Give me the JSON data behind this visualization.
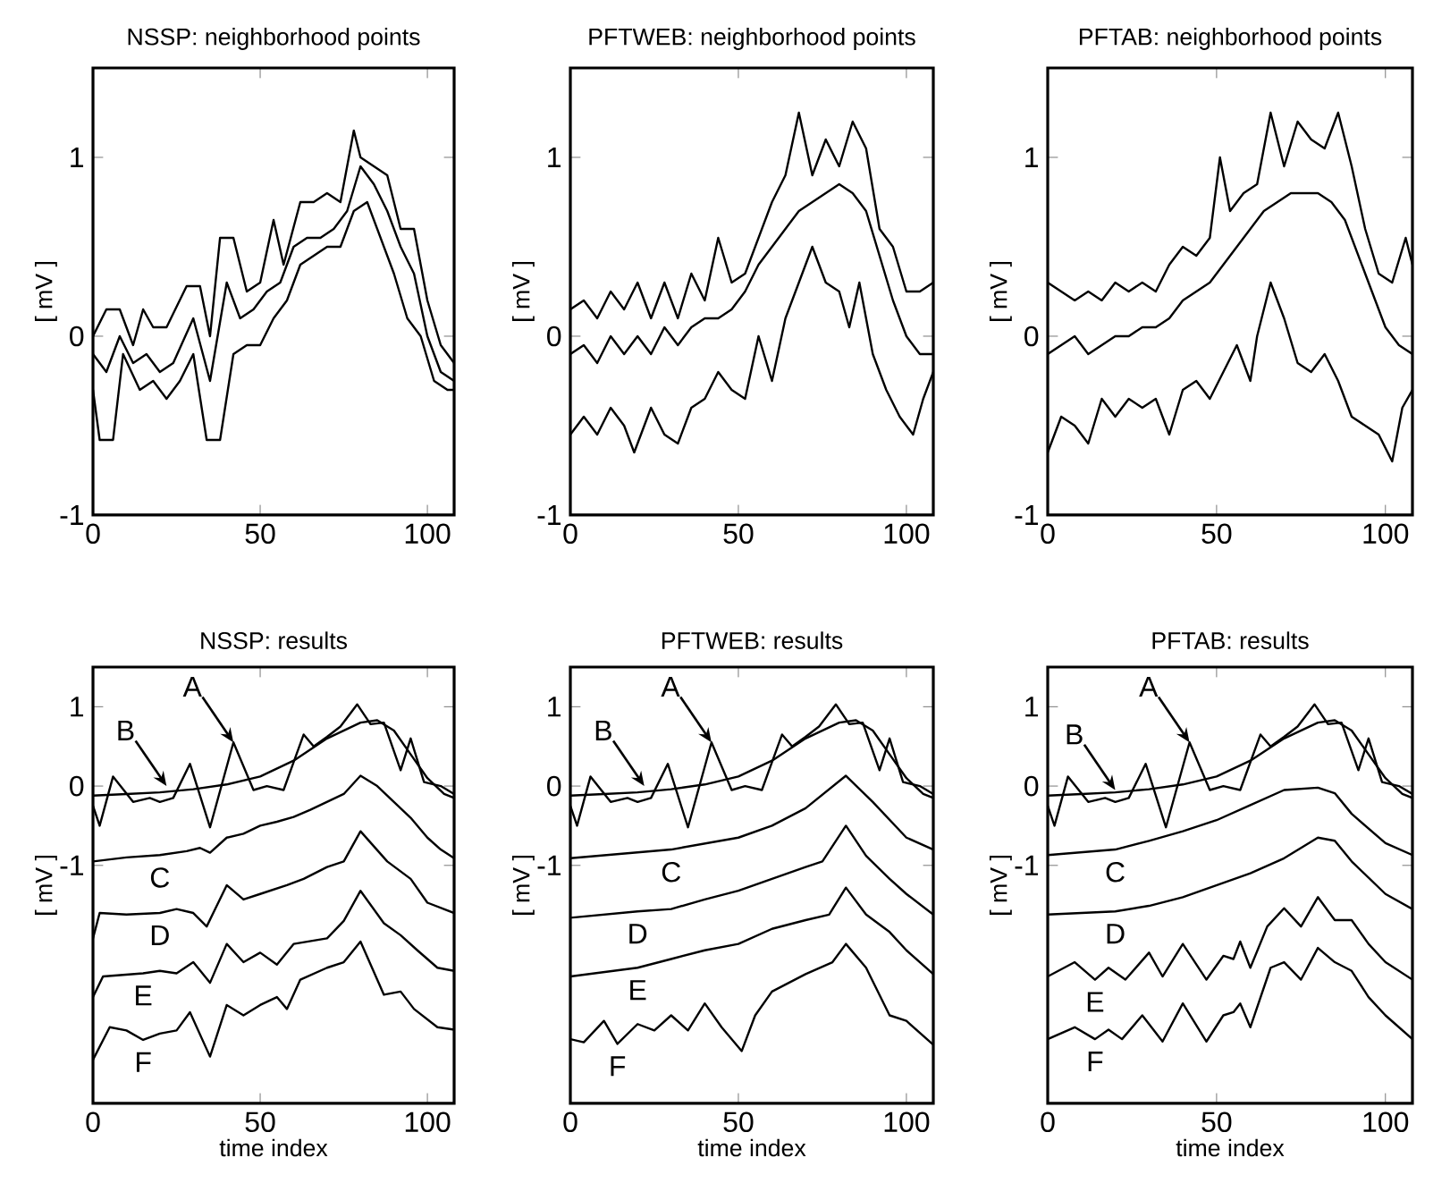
{
  "chart_data": [
    {
      "type": "line",
      "title": "NSSP: neighborhood points",
      "ylabel": "[ mV ]",
      "xlim": [
        0,
        108
      ],
      "ylim": [
        -1,
        1.5
      ],
      "xticks": [
        0,
        50,
        100
      ],
      "yticks": [
        -1,
        0,
        1
      ],
      "series": [
        {
          "color": "#000000",
          "x": [
            0,
            4,
            8,
            12,
            15,
            18,
            22,
            28,
            32,
            35,
            38,
            42,
            46,
            50,
            54,
            57,
            62,
            66,
            70,
            74,
            78,
            80,
            84,
            88,
            92,
            96,
            100,
            104,
            108
          ],
          "values": [
            0.0,
            0.15,
            0.15,
            -0.05,
            0.15,
            0.05,
            0.05,
            0.28,
            0.28,
            0.0,
            0.55,
            0.55,
            0.25,
            0.3,
            0.65,
            0.4,
            0.75,
            0.75,
            0.8,
            0.75,
            1.15,
            1.0,
            0.95,
            0.9,
            0.6,
            0.6,
            0.2,
            -0.05,
            -0.15
          ]
        },
        {
          "color": "#000000",
          "x": [
            0,
            4,
            8,
            12,
            16,
            20,
            24,
            30,
            35,
            40,
            44,
            48,
            52,
            56,
            60,
            64,
            68,
            72,
            76,
            80,
            84,
            88,
            92,
            96,
            100,
            104,
            108
          ],
          "values": [
            -0.1,
            -0.2,
            0.0,
            -0.15,
            -0.1,
            -0.2,
            -0.15,
            0.1,
            -0.25,
            0.3,
            0.1,
            0.15,
            0.25,
            0.3,
            0.5,
            0.55,
            0.55,
            0.6,
            0.7,
            0.95,
            0.85,
            0.7,
            0.5,
            0.35,
            0.0,
            -0.2,
            -0.25
          ]
        },
        {
          "color": "#000000",
          "x": [
            0,
            2,
            6,
            9,
            14,
            18,
            22,
            26,
            30,
            34,
            38,
            42,
            46,
            50,
            54,
            58,
            62,
            66,
            70,
            74,
            78,
            82,
            86,
            90,
            94,
            98,
            102,
            106,
            108
          ],
          "values": [
            -0.3,
            -0.58,
            -0.58,
            -0.1,
            -0.3,
            -0.25,
            -0.35,
            -0.25,
            -0.1,
            -0.58,
            -0.58,
            -0.1,
            -0.05,
            -0.05,
            0.1,
            0.2,
            0.4,
            0.45,
            0.5,
            0.5,
            0.7,
            0.75,
            0.55,
            0.35,
            0.1,
            0.0,
            -0.25,
            -0.3,
            -0.3
          ]
        }
      ]
    },
    {
      "type": "line",
      "title": "PFTWEB: neighborhood points",
      "ylabel": "[ mV ]",
      "xlim": [
        0,
        108
      ],
      "ylim": [
        -1,
        1.5
      ],
      "xticks": [
        0,
        50,
        100
      ],
      "yticks": [
        -1,
        0,
        1
      ],
      "series": [
        {
          "color": "#000000",
          "x": [
            0,
            4,
            8,
            12,
            16,
            20,
            24,
            28,
            32,
            36,
            40,
            44,
            48,
            52,
            56,
            60,
            64,
            68,
            72,
            76,
            80,
            84,
            88,
            92,
            96,
            100,
            104,
            108
          ],
          "values": [
            0.15,
            0.2,
            0.1,
            0.25,
            0.15,
            0.3,
            0.1,
            0.3,
            0.1,
            0.35,
            0.2,
            0.55,
            0.3,
            0.35,
            0.55,
            0.75,
            0.9,
            1.25,
            0.9,
            1.1,
            0.95,
            1.2,
            1.05,
            0.6,
            0.5,
            0.25,
            0.25,
            0.3
          ]
        },
        {
          "color": "#000000",
          "x": [
            0,
            4,
            8,
            12,
            16,
            20,
            24,
            28,
            32,
            36,
            40,
            44,
            48,
            52,
            56,
            60,
            64,
            68,
            72,
            76,
            80,
            84,
            88,
            92,
            96,
            100,
            104,
            108
          ],
          "values": [
            -0.1,
            -0.05,
            -0.15,
            0.0,
            -0.1,
            0.0,
            -0.1,
            0.05,
            -0.05,
            0.05,
            0.1,
            0.1,
            0.15,
            0.25,
            0.4,
            0.5,
            0.6,
            0.7,
            0.75,
            0.8,
            0.85,
            0.8,
            0.7,
            0.45,
            0.2,
            0.0,
            -0.1,
            -0.1
          ]
        },
        {
          "color": "#000000",
          "x": [
            0,
            4,
            8,
            12,
            16,
            19,
            24,
            28,
            32,
            36,
            40,
            44,
            48,
            52,
            56,
            60,
            64,
            68,
            72,
            76,
            80,
            83,
            86,
            90,
            94,
            98,
            102,
            105,
            108
          ],
          "values": [
            -0.55,
            -0.45,
            -0.55,
            -0.4,
            -0.5,
            -0.65,
            -0.4,
            -0.55,
            -0.6,
            -0.4,
            -0.35,
            -0.2,
            -0.3,
            -0.35,
            0.0,
            -0.25,
            0.1,
            0.3,
            0.5,
            0.3,
            0.25,
            0.05,
            0.3,
            -0.1,
            -0.3,
            -0.45,
            -0.55,
            -0.35,
            -0.2
          ]
        }
      ]
    },
    {
      "type": "line",
      "title": "PFTAB: neighborhood points",
      "ylabel": "[ mV ]",
      "xlim": [
        0,
        108
      ],
      "ylim": [
        -1,
        1.5
      ],
      "xticks": [
        0,
        50,
        100
      ],
      "yticks": [
        -1,
        0,
        1
      ],
      "series": [
        {
          "color": "#000000",
          "x": [
            0,
            4,
            8,
            12,
            16,
            20,
            24,
            28,
            32,
            36,
            40,
            44,
            48,
            51,
            54,
            58,
            62,
            66,
            70,
            74,
            78,
            82,
            86,
            90,
            94,
            98,
            102,
            106,
            108
          ],
          "values": [
            0.3,
            0.25,
            0.2,
            0.25,
            0.2,
            0.3,
            0.25,
            0.3,
            0.25,
            0.4,
            0.5,
            0.45,
            0.55,
            1.0,
            0.7,
            0.8,
            0.85,
            1.25,
            0.95,
            1.2,
            1.1,
            1.05,
            1.25,
            0.95,
            0.6,
            0.35,
            0.3,
            0.55,
            0.4
          ]
        },
        {
          "color": "#000000",
          "x": [
            0,
            4,
            8,
            12,
            16,
            20,
            24,
            28,
            32,
            36,
            40,
            44,
            48,
            52,
            56,
            60,
            64,
            68,
            72,
            76,
            80,
            84,
            88,
            92,
            96,
            100,
            104,
            108
          ],
          "values": [
            -0.1,
            -0.05,
            0.0,
            -0.1,
            -0.05,
            0.0,
            0.0,
            0.05,
            0.05,
            0.1,
            0.2,
            0.25,
            0.3,
            0.4,
            0.5,
            0.6,
            0.7,
            0.75,
            0.8,
            0.8,
            0.8,
            0.75,
            0.65,
            0.45,
            0.25,
            0.05,
            -0.05,
            -0.1
          ]
        },
        {
          "color": "#000000",
          "x": [
            0,
            4,
            8,
            12,
            16,
            20,
            24,
            28,
            32,
            36,
            40,
            44,
            48,
            52,
            56,
            60,
            62,
            66,
            70,
            74,
            78,
            82,
            86,
            90,
            94,
            98,
            102,
            105,
            108
          ],
          "values": [
            -0.65,
            -0.45,
            -0.5,
            -0.6,
            -0.35,
            -0.45,
            -0.35,
            -0.4,
            -0.35,
            -0.55,
            -0.3,
            -0.25,
            -0.35,
            -0.2,
            -0.05,
            -0.25,
            0.0,
            0.3,
            0.1,
            -0.15,
            -0.2,
            -0.1,
            -0.25,
            -0.45,
            -0.5,
            -0.55,
            -0.7,
            -0.4,
            -0.3
          ]
        }
      ]
    },
    {
      "type": "line",
      "title": "NSSP: results",
      "ylabel": "[ mV ]",
      "xlabel": "time index",
      "xlim": [
        0,
        108
      ],
      "ylim": [
        -4,
        1.5
      ],
      "xticks": [
        0,
        50,
        100
      ],
      "yticks": [
        -1,
        0,
        1
      ],
      "annotations": [
        {
          "text": "A",
          "x": 42,
          "y": 0.55
        },
        {
          "text": "B",
          "x": 22,
          "y": 0.0
        }
      ],
      "series": [
        {
          "color": "#000000",
          "x": [
            0,
            2,
            6,
            12,
            17,
            20,
            24,
            29,
            35,
            42,
            48,
            52,
            57,
            60,
            63,
            66,
            70,
            74,
            79,
            83,
            87,
            92,
            95,
            99,
            104,
            108
          ],
          "values": [
            -0.25,
            -0.5,
            0.12,
            -0.2,
            -0.15,
            -0.2,
            -0.15,
            0.28,
            -0.52,
            0.55,
            -0.05,
            0.0,
            -0.05,
            0.3,
            0.65,
            0.5,
            0.62,
            0.75,
            1.03,
            0.78,
            0.8,
            0.2,
            0.6,
            0.05,
            0.0,
            -0.1
          ]
        },
        {
          "color": "#000000",
          "x": [
            0,
            10,
            20,
            30,
            40,
            50,
            60,
            70,
            80,
            85,
            90,
            95,
            100,
            105,
            108
          ],
          "values": [
            -0.12,
            -0.1,
            -0.08,
            -0.04,
            0.02,
            0.12,
            0.32,
            0.6,
            0.8,
            0.83,
            0.7,
            0.4,
            0.1,
            -0.1,
            -0.15
          ]
        },
        {
          "name": "C",
          "color": "#000000",
          "x": [
            0,
            10,
            20,
            28,
            32,
            35,
            40,
            45,
            50,
            55,
            60,
            65,
            70,
            75,
            80,
            85,
            90,
            95,
            100,
            104,
            108
          ],
          "values": [
            -0.95,
            -0.9,
            -0.87,
            -0.82,
            -0.78,
            -0.84,
            -0.65,
            -0.6,
            -0.5,
            -0.45,
            -0.39,
            -0.3,
            -0.2,
            -0.1,
            0.13,
            0.0,
            -0.2,
            -0.4,
            -0.65,
            -0.8,
            -0.91
          ]
        },
        {
          "name": "D",
          "color": "#000000",
          "x": [
            0,
            2,
            10,
            20,
            25,
            30,
            34,
            40,
            45,
            50,
            58,
            63,
            70,
            75,
            80,
            88,
            95,
            100,
            108
          ],
          "values": [
            -1.92,
            -1.6,
            -1.62,
            -1.6,
            -1.55,
            -1.6,
            -1.77,
            -1.25,
            -1.43,
            -1.36,
            -1.25,
            -1.17,
            -1.02,
            -0.95,
            -0.57,
            -0.95,
            -1.17,
            -1.47,
            -1.6
          ]
        },
        {
          "name": "E",
          "color": "#000000",
          "x": [
            0,
            3,
            15,
            20,
            25,
            30,
            35,
            40,
            45,
            50,
            55,
            60,
            70,
            75,
            80,
            87,
            92,
            97,
            103,
            108
          ],
          "values": [
            -2.66,
            -2.4,
            -2.36,
            -2.33,
            -2.36,
            -2.22,
            -2.48,
            -1.99,
            -2.22,
            -2.1,
            -2.25,
            -1.99,
            -1.92,
            -1.7,
            -1.32,
            -1.73,
            -1.88,
            -2.07,
            -2.29,
            -2.33
          ]
        },
        {
          "name": "F",
          "color": "#000000",
          "x": [
            0,
            5,
            10,
            15,
            20,
            25,
            29,
            35,
            40,
            45,
            50,
            55,
            58,
            62,
            70,
            75,
            80,
            87,
            92,
            96,
            103,
            108
          ],
          "values": [
            -3.45,
            -3.04,
            -3.08,
            -3.2,
            -3.12,
            -3.08,
            -2.85,
            -3.41,
            -2.76,
            -2.89,
            -2.76,
            -2.66,
            -2.81,
            -2.44,
            -2.29,
            -2.22,
            -1.96,
            -2.63,
            -2.59,
            -2.81,
            -3.04,
            -3.07
          ]
        }
      ]
    },
    {
      "type": "line",
      "title": "PFTWEB: results",
      "ylabel": "[ mV ]",
      "xlabel": "time index",
      "xlim": [
        0,
        108
      ],
      "ylim": [
        -4,
        1.5
      ],
      "xticks": [
        0,
        50,
        100
      ],
      "yticks": [
        -1,
        0,
        1
      ],
      "annotations": [
        {
          "text": "A",
          "x": 42,
          "y": 0.55
        },
        {
          "text": "B",
          "x": 22,
          "y": 0.0
        }
      ],
      "series": [
        {
          "color": "#000000",
          "x": [
            0,
            2,
            6,
            12,
            17,
            20,
            24,
            29,
            35,
            42,
            48,
            52,
            57,
            60,
            63,
            66,
            70,
            74,
            79,
            83,
            87,
            92,
            95,
            99,
            104,
            108
          ],
          "values": [
            -0.25,
            -0.5,
            0.12,
            -0.2,
            -0.15,
            -0.2,
            -0.15,
            0.28,
            -0.52,
            0.55,
            -0.05,
            0.0,
            -0.05,
            0.3,
            0.65,
            0.5,
            0.62,
            0.75,
            1.03,
            0.78,
            0.8,
            0.2,
            0.6,
            0.05,
            0.0,
            -0.1
          ]
        },
        {
          "color": "#000000",
          "x": [
            0,
            10,
            20,
            30,
            40,
            50,
            60,
            70,
            80,
            85,
            90,
            95,
            100,
            105,
            108
          ],
          "values": [
            -0.12,
            -0.1,
            -0.08,
            -0.04,
            0.02,
            0.12,
            0.32,
            0.6,
            0.8,
            0.83,
            0.7,
            0.4,
            0.1,
            -0.1,
            -0.15
          ]
        },
        {
          "name": "C",
          "color": "#000000",
          "x": [
            0,
            30,
            50,
            60,
            70,
            82,
            90,
            100,
            108
          ],
          "values": [
            -0.91,
            -0.8,
            -0.65,
            -0.5,
            -0.28,
            0.13,
            -0.2,
            -0.65,
            -0.8
          ]
        },
        {
          "name": "D",
          "color": "#000000",
          "x": [
            0,
            20,
            30,
            40,
            50,
            60,
            70,
            75,
            82,
            88,
            95,
            100,
            108
          ],
          "values": [
            -1.66,
            -1.58,
            -1.55,
            -1.43,
            -1.32,
            -1.17,
            -1.02,
            -0.95,
            -0.5,
            -0.88,
            -1.17,
            -1.36,
            -1.62
          ]
        },
        {
          "name": "E",
          "color": "#000000",
          "x": [
            0,
            20,
            30,
            40,
            50,
            60,
            70,
            77,
            82,
            88,
            95,
            100,
            108
          ],
          "values": [
            -2.4,
            -2.29,
            -2.18,
            -2.07,
            -1.99,
            -1.8,
            -1.69,
            -1.62,
            -1.28,
            -1.62,
            -1.84,
            -2.07,
            -2.37
          ]
        },
        {
          "name": "F",
          "color": "#000000",
          "x": [
            0,
            4,
            10,
            14,
            20,
            25,
            30,
            35,
            40,
            45,
            51,
            55,
            60,
            70,
            78,
            82,
            88,
            95,
            100,
            108
          ],
          "values": [
            -3.19,
            -3.23,
            -2.96,
            -3.25,
            -3.0,
            -3.08,
            -2.89,
            -3.08,
            -2.74,
            -3.04,
            -3.34,
            -2.89,
            -2.59,
            -2.37,
            -2.22,
            -1.99,
            -2.29,
            -2.89,
            -2.96,
            -3.26
          ]
        }
      ]
    },
    {
      "type": "line",
      "title": "PFTAB: results",
      "ylabel": "[ mV ]",
      "xlabel": "time index",
      "xlim": [
        0,
        108
      ],
      "ylim": [
        -4,
        1.5
      ],
      "xticks": [
        0,
        50,
        100
      ],
      "yticks": [
        -1,
        0,
        1
      ],
      "annotations": [
        {
          "text": "A",
          "x": 42,
          "y": 0.55
        },
        {
          "text": "B",
          "x": 20,
          "y": -0.05
        }
      ],
      "series": [
        {
          "color": "#000000",
          "x": [
            0,
            2,
            6,
            12,
            17,
            20,
            24,
            29,
            35,
            42,
            48,
            52,
            57,
            60,
            63,
            66,
            70,
            74,
            79,
            83,
            87,
            92,
            95,
            99,
            104,
            108
          ],
          "values": [
            -0.25,
            -0.5,
            0.12,
            -0.2,
            -0.15,
            -0.2,
            -0.15,
            0.28,
            -0.52,
            0.55,
            -0.05,
            0.0,
            -0.05,
            0.3,
            0.65,
            0.5,
            0.62,
            0.75,
            1.03,
            0.78,
            0.8,
            0.2,
            0.6,
            0.05,
            0.0,
            -0.1
          ]
        },
        {
          "color": "#000000",
          "x": [
            0,
            10,
            20,
            30,
            40,
            50,
            60,
            70,
            80,
            85,
            90,
            95,
            100,
            105,
            108
          ],
          "values": [
            -0.12,
            -0.1,
            -0.08,
            -0.04,
            0.02,
            0.12,
            0.32,
            0.6,
            0.8,
            0.83,
            0.7,
            0.4,
            0.1,
            -0.1,
            -0.15
          ]
        },
        {
          "name": "C",
          "color": "#000000",
          "x": [
            0,
            20,
            30,
            40,
            50,
            60,
            70,
            80,
            85,
            90,
            100,
            108
          ],
          "values": [
            -0.87,
            -0.8,
            -0.69,
            -0.57,
            -0.43,
            -0.24,
            -0.05,
            -0.02,
            -0.09,
            -0.35,
            -0.72,
            -0.87
          ]
        },
        {
          "name": "D",
          "color": "#000000",
          "x": [
            0,
            20,
            30,
            40,
            50,
            60,
            70,
            80,
            85,
            90,
            100,
            108
          ],
          "values": [
            -1.62,
            -1.58,
            -1.51,
            -1.4,
            -1.25,
            -1.1,
            -0.91,
            -0.65,
            -0.69,
            -0.95,
            -1.36,
            -1.55
          ]
        },
        {
          "name": "E",
          "color": "#000000",
          "x": [
            0,
            8,
            14,
            18,
            23,
            30,
            34,
            40,
            47,
            52,
            55,
            57,
            60,
            65,
            70,
            75,
            80,
            85,
            90,
            95,
            100,
            108
          ],
          "values": [
            -2.4,
            -2.22,
            -2.44,
            -2.29,
            -2.44,
            -2.1,
            -2.4,
            -1.99,
            -2.44,
            -2.14,
            -2.18,
            -1.96,
            -2.29,
            -1.77,
            -1.54,
            -1.77,
            -1.4,
            -1.69,
            -1.69,
            -1.99,
            -2.22,
            -2.44
          ]
        },
        {
          "name": "F",
          "color": "#000000",
          "x": [
            0,
            8,
            14,
            18,
            22,
            28,
            34,
            40,
            47,
            52,
            55,
            57,
            60,
            66,
            70,
            75,
            80,
            85,
            90,
            95,
            100,
            108
          ],
          "values": [
            -3.19,
            -3.04,
            -3.19,
            -3.07,
            -3.19,
            -2.89,
            -3.22,
            -2.74,
            -3.22,
            -2.89,
            -2.85,
            -2.74,
            -3.04,
            -2.29,
            -2.22,
            -2.44,
            -2.04,
            -2.22,
            -2.33,
            -2.66,
            -2.89,
            -3.19
          ]
        }
      ]
    }
  ]
}
